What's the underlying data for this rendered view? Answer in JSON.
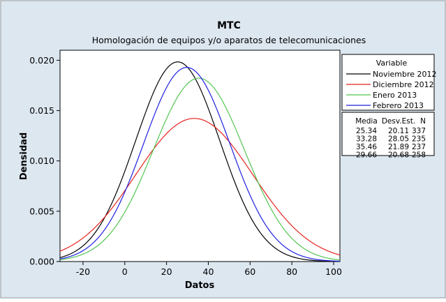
{
  "chart_data": {
    "type": "line",
    "title": "MTC",
    "subtitle": "Homologación de equipos y/o aparatos de telecomunicaciones",
    "xlabel": "Datos",
    "ylabel": "Densidad",
    "xlim": [
      -31,
      103
    ],
    "ylim": [
      0,
      0.021
    ],
    "x_ticks": [
      -20,
      0,
      20,
      40,
      60,
      80,
      100
    ],
    "x_tick_labels": [
      "-20",
      "0",
      "20",
      "40",
      "60",
      "80",
      "100"
    ],
    "y_ticks": [
      0,
      0.005,
      0.01,
      0.015,
      0.02
    ],
    "y_tick_labels": [
      "0.000",
      "0.005",
      "0.010",
      "0.015",
      "0.020"
    ],
    "distribution": "normal",
    "grid": false,
    "legend": {
      "title": "Variable",
      "placement": "right",
      "entries": [
        "Noviembre 2012",
        "Diciembre 2012",
        "Enero 2013",
        "Febrero 2013"
      ]
    },
    "series": [
      {
        "name": "Noviembre 2012",
        "color": "#000000",
        "mean": 25.34,
        "stdev": 20.11,
        "n": 337
      },
      {
        "name": "Diciembre 2012",
        "color": "#e8231f",
        "mean": 33.28,
        "stdev": 28.05,
        "n": 235
      },
      {
        "name": "Enero 2013",
        "color": "#52c552",
        "mean": 35.46,
        "stdev": 21.89,
        "n": 237
      },
      {
        "name": "Febrero 2013",
        "color": "#1f1fe0",
        "mean": 29.66,
        "stdev": 20.68,
        "n": 258
      }
    ],
    "stats_table": {
      "headers": [
        "Media",
        "Desv.Est.",
        "N"
      ],
      "rows": [
        [
          "25.34",
          "20.11",
          "337"
        ],
        [
          "33.28",
          "28.05",
          "235"
        ],
        [
          "35.46",
          "21.89",
          "237"
        ],
        [
          "29.66",
          "20.68",
          "258"
        ]
      ]
    }
  }
}
